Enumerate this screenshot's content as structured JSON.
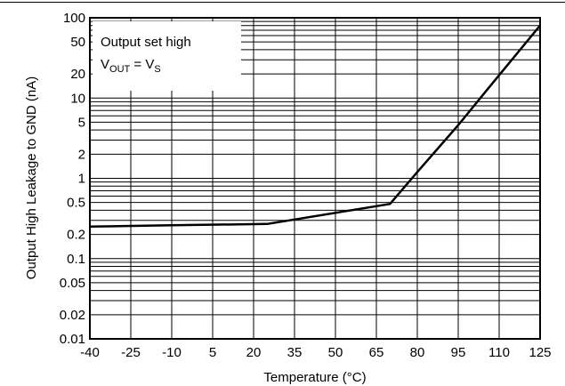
{
  "chart_data": {
    "type": "line",
    "xlabel": "Temperature (°C)",
    "ylabel": "Output High Leakage to GND (nA)",
    "x_ticks": [
      "-40",
      "-25",
      "-10",
      "5",
      "20",
      "35",
      "50",
      "65",
      "80",
      "95",
      "110",
      "125"
    ],
    "y_ticks": [
      {
        "value": 0.01,
        "label": "0.01"
      },
      {
        "value": 0.02,
        "label": "0.02"
      },
      {
        "value": 0.05,
        "label": "0.05"
      },
      {
        "value": 0.1,
        "label": "0.1"
      },
      {
        "value": 0.2,
        "label": "0.2"
      },
      {
        "value": 0.5,
        "label": "0.5"
      },
      {
        "value": 1,
        "label": "1"
      },
      {
        "value": 2,
        "label": "2"
      },
      {
        "value": 5,
        "label": "5"
      },
      {
        "value": 10,
        "label": "10"
      },
      {
        "value": 20,
        "label": "20"
      },
      {
        "value": 50,
        "label": "50"
      },
      {
        "value": 100,
        "label": "100"
      }
    ],
    "xlim": [
      -40,
      125
    ],
    "ylim": [
      0.01,
      100
    ],
    "yscale": "log",
    "grid": true,
    "annotation": {
      "line1": "Output set high",
      "line2_prefix": "V",
      "line2_sub": "OUT",
      "line2_mid": " = V",
      "line2_sub2": "S"
    },
    "series": [
      {
        "x": [
          -40,
          -10,
          25,
          70,
          80,
          95,
          105,
          125
        ],
        "y": [
          0.25,
          0.26,
          0.27,
          0.48,
          1.2,
          4.6,
          12,
          80
        ]
      }
    ]
  }
}
